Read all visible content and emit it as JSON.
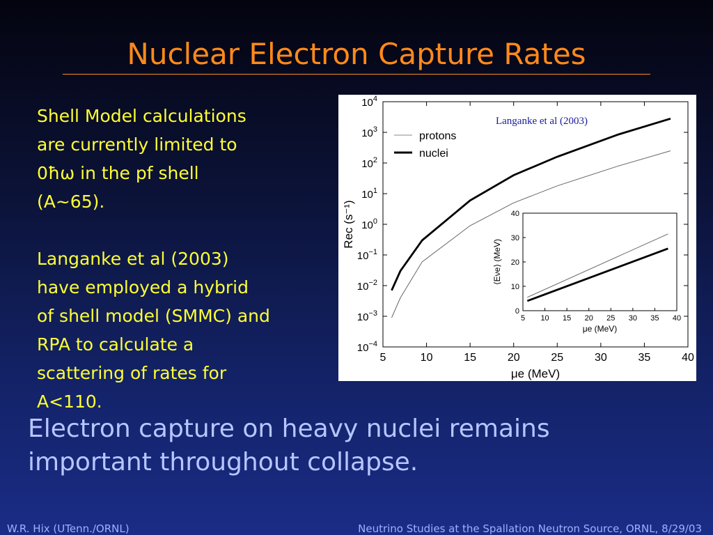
{
  "slide": {
    "title": "Nuclear Electron Capture Rates",
    "body_paragraph_1": [
      "Shell Model calculations",
      "are currently limited to",
      "0ħω in the pf shell",
      "(A~65)."
    ],
    "body_paragraph_2": [
      "Langanke et al (2003)",
      "have employed a hybrid",
      "of shell model (SMMC) and",
      "RPA to calculate a",
      "scattering of rates for",
      "A<110."
    ],
    "conclusion": [
      "Electron capture on heavy nuclei remains",
      "important throughout collapse."
    ],
    "footer_left": "W.R. Hix (UTenn./ORNL)",
    "footer_right": "Neutrino Studies at the Spallation Neutron Source, ORNL, 8/29/03"
  },
  "colors": {
    "title": "#ff8a1a",
    "body": "#ffff33",
    "conclusion": "#b7c6ff",
    "footer": "#9fb0ff",
    "annotation": "#1a1aa0"
  },
  "chart_data": [
    {
      "type": "line",
      "annotation": "Langanke et al (2003)",
      "xlabel": "μe (MeV)",
      "ylabel": "Rec (s⁻¹)",
      "xlim": [
        5,
        40
      ],
      "ylim": [
        0.0001,
        10000
      ],
      "yscale": "log",
      "x_ticks": [
        5,
        10,
        15,
        20,
        25,
        30,
        35,
        40
      ],
      "y_tick_exponents": [
        -4,
        -3,
        -2,
        -1,
        0,
        1,
        2,
        3,
        4
      ],
      "legend_position": "top-left",
      "series": [
        {
          "name": "protons",
          "style": "thin",
          "x": [
            6,
            7,
            9.5,
            15,
            20,
            25,
            32,
            38
          ],
          "y": [
            0.0009,
            0.004,
            0.06,
            0.9,
            5,
            18,
            80,
            250
          ]
        },
        {
          "name": "nuclei",
          "style": "thick",
          "x": [
            6,
            7,
            9.5,
            15,
            20,
            25,
            32,
            38
          ],
          "y": [
            0.007,
            0.03,
            0.3,
            6,
            40,
            160,
            850,
            2800
          ]
        }
      ]
    },
    {
      "type": "line",
      "inset": true,
      "xlabel": "μe (MeV)",
      "ylabel": "⟨Eνe⟩ (MeV)",
      "xlim": [
        5,
        40
      ],
      "ylim": [
        0,
        40
      ],
      "x_ticks": [
        5,
        10,
        15,
        20,
        25,
        30,
        35,
        40
      ],
      "y_ticks": [
        0,
        10,
        20,
        30,
        40
      ],
      "series": [
        {
          "style": "thin",
          "x": [
            6,
            38
          ],
          "y": [
            5.5,
            31.5
          ]
        },
        {
          "style": "thick",
          "x": [
            6,
            38
          ],
          "y": [
            4,
            25.5
          ]
        }
      ]
    }
  ]
}
